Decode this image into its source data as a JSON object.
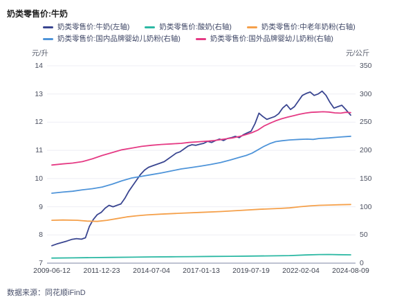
{
  "title": "奶类零售价:牛奶",
  "footer": {
    "source": "数据来源：同花顺iFinD"
  },
  "axes": {
    "left_unit": "元/升",
    "right_unit": "元/公斤"
  },
  "legend": [
    {
      "label": "奶类零售价:牛奶(左轴)",
      "color": "#394590"
    },
    {
      "label": "奶类零售价:酸奶(右轴)",
      "color": "#2BB8A3"
    },
    {
      "label": "奶类零售价:中老年奶粉(右轴)",
      "color": "#F5A04A"
    },
    {
      "label": "奶类零售价:国内品牌婴幼儿奶粉(右轴)",
      "color": "#4E94D9"
    },
    {
      "label": "奶类零售价:国外品牌婴幼儿奶粉(右轴)",
      "color": "#E53A84"
    }
  ],
  "chart_data": {
    "type": "line",
    "title": "奶类零售价:牛奶",
    "grid": true,
    "legend_position": "top",
    "x_axis": {
      "range": [
        2009.45,
        2024.6
      ],
      "tick_labels": [
        "2009-06-12",
        "2011-12-23",
        "2014-07-04",
        "2017-01-13",
        "2019-07-19",
        "2022-02-04",
        "2024-08-09"
      ]
    },
    "left_axis": {
      "unit": "元/升",
      "range": [
        7,
        14
      ],
      "ticks": [
        14,
        13,
        12,
        11,
        10,
        9,
        8,
        7
      ]
    },
    "right_axis": {
      "unit": "元/公斤",
      "range": [
        0,
        350
      ],
      "ticks": [
        350,
        300,
        250,
        200,
        150,
        100,
        50,
        0
      ]
    },
    "series": [
      {
        "name": "奶类零售价:牛奶(左轴)",
        "axis": "left",
        "color": "#394590",
        "points": [
          [
            2009.45,
            7.62
          ],
          [
            2009.7,
            7.68
          ],
          [
            2009.95,
            7.73
          ],
          [
            2010.2,
            7.78
          ],
          [
            2010.45,
            7.84
          ],
          [
            2010.7,
            7.87
          ],
          [
            2010.95,
            7.85
          ],
          [
            2011.15,
            7.9
          ],
          [
            2011.35,
            8.3
          ],
          [
            2011.55,
            8.55
          ],
          [
            2011.75,
            8.72
          ],
          [
            2011.95,
            8.8
          ],
          [
            2012.15,
            8.95
          ],
          [
            2012.35,
            9.05
          ],
          [
            2012.55,
            9.0
          ],
          [
            2012.75,
            9.05
          ],
          [
            2012.95,
            9.1
          ],
          [
            2013.15,
            9.3
          ],
          [
            2013.35,
            9.55
          ],
          [
            2013.55,
            9.75
          ],
          [
            2013.75,
            9.95
          ],
          [
            2013.95,
            10.15
          ],
          [
            2014.15,
            10.3
          ],
          [
            2014.35,
            10.4
          ],
          [
            2014.55,
            10.45
          ],
          [
            2014.75,
            10.5
          ],
          [
            2014.95,
            10.55
          ],
          [
            2015.15,
            10.6
          ],
          [
            2015.35,
            10.7
          ],
          [
            2015.55,
            10.8
          ],
          [
            2015.75,
            10.9
          ],
          [
            2015.95,
            10.95
          ],
          [
            2016.15,
            11.05
          ],
          [
            2016.35,
            11.15
          ],
          [
            2016.55,
            11.2
          ],
          [
            2016.75,
            11.18
          ],
          [
            2016.95,
            11.22
          ],
          [
            2017.15,
            11.25
          ],
          [
            2017.35,
            11.32
          ],
          [
            2017.55,
            11.28
          ],
          [
            2017.75,
            11.35
          ],
          [
            2017.95,
            11.4
          ],
          [
            2018.15,
            11.35
          ],
          [
            2018.35,
            11.42
          ],
          [
            2018.55,
            11.45
          ],
          [
            2018.75,
            11.5
          ],
          [
            2018.95,
            11.45
          ],
          [
            2019.15,
            11.55
          ],
          [
            2019.35,
            11.62
          ],
          [
            2019.55,
            11.68
          ],
          [
            2019.75,
            11.95
          ],
          [
            2019.95,
            12.32
          ],
          [
            2020.15,
            12.2
          ],
          [
            2020.35,
            12.1
          ],
          [
            2020.55,
            12.15
          ],
          [
            2020.75,
            12.2
          ],
          [
            2020.95,
            12.3
          ],
          [
            2021.15,
            12.5
          ],
          [
            2021.35,
            12.62
          ],
          [
            2021.55,
            12.45
          ],
          [
            2021.75,
            12.55
          ],
          [
            2021.95,
            12.75
          ],
          [
            2022.15,
            12.95
          ],
          [
            2022.35,
            13.02
          ],
          [
            2022.55,
            13.07
          ],
          [
            2022.75,
            12.95
          ],
          [
            2022.95,
            13.0
          ],
          [
            2023.15,
            13.1
          ],
          [
            2023.35,
            12.95
          ],
          [
            2023.55,
            12.7
          ],
          [
            2023.75,
            12.5
          ],
          [
            2023.95,
            12.55
          ],
          [
            2024.15,
            12.6
          ],
          [
            2024.35,
            12.45
          ],
          [
            2024.6,
            12.25
          ]
        ]
      },
      {
        "name": "奶类零售价:酸奶(右轴)",
        "axis": "right",
        "color": "#2BB8A3",
        "points": [
          [
            2009.45,
            9
          ],
          [
            2010.5,
            9.3
          ],
          [
            2011.5,
            9.8
          ],
          [
            2012.5,
            10.2
          ],
          [
            2013.5,
            10.6
          ],
          [
            2014.5,
            11
          ],
          [
            2015.5,
            11.3
          ],
          [
            2016.5,
            11.6
          ],
          [
            2017.5,
            11.9
          ],
          [
            2018.5,
            12.2
          ],
          [
            2019.5,
            12.5
          ],
          [
            2020.5,
            12.9
          ],
          [
            2021.5,
            13.4
          ],
          [
            2022.3,
            14.5
          ],
          [
            2023,
            15.2
          ],
          [
            2023.5,
            15.4
          ],
          [
            2024,
            15
          ],
          [
            2024.6,
            14.7
          ]
        ]
      },
      {
        "name": "奶类零售价:中老年奶粉(右轴)",
        "axis": "right",
        "color": "#F5A04A",
        "points": [
          [
            2009.45,
            76
          ],
          [
            2010,
            76.5
          ],
          [
            2010.75,
            76
          ],
          [
            2011.25,
            74.5
          ],
          [
            2011.75,
            74
          ],
          [
            2012.25,
            76
          ],
          [
            2012.75,
            79
          ],
          [
            2013.25,
            82
          ],
          [
            2013.75,
            84
          ],
          [
            2014.25,
            85.5
          ],
          [
            2015,
            87
          ],
          [
            2016,
            88.5
          ],
          [
            2017,
            90
          ],
          [
            2018,
            91.5
          ],
          [
            2019,
            93.5
          ],
          [
            2020,
            95.5
          ],
          [
            2021,
            97
          ],
          [
            2021.5,
            98
          ],
          [
            2022,
            100
          ],
          [
            2022.5,
            101.5
          ],
          [
            2023,
            102.5
          ],
          [
            2023.5,
            103
          ],
          [
            2024,
            103.5
          ],
          [
            2024.6,
            104
          ]
        ]
      },
      {
        "name": "奶类零售价:国内品牌婴幼儿奶粉(右轴)",
        "axis": "right",
        "color": "#4E94D9",
        "points": [
          [
            2009.45,
            124
          ],
          [
            2010,
            126
          ],
          [
            2010.5,
            127.5
          ],
          [
            2011,
            130
          ],
          [
            2011.5,
            132
          ],
          [
            2012,
            135
          ],
          [
            2012.5,
            140
          ],
          [
            2013,
            146
          ],
          [
            2013.5,
            151
          ],
          [
            2014,
            154
          ],
          [
            2014.5,
            157
          ],
          [
            2015,
            160
          ],
          [
            2015.5,
            163.5
          ],
          [
            2016,
            167
          ],
          [
            2016.5,
            169.5
          ],
          [
            2017,
            172
          ],
          [
            2017.5,
            175
          ],
          [
            2018,
            178.5
          ],
          [
            2018.5,
            183
          ],
          [
            2019,
            188
          ],
          [
            2019.3,
            191
          ],
          [
            2019.6,
            195
          ],
          [
            2019.9,
            201
          ],
          [
            2020.2,
            207
          ],
          [
            2020.5,
            212
          ],
          [
            2020.8,
            215.5
          ],
          [
            2021.1,
            217
          ],
          [
            2021.5,
            218.5
          ],
          [
            2022,
            219.5
          ],
          [
            2022.4,
            220
          ],
          [
            2022.7,
            219.5
          ],
          [
            2023,
            221
          ],
          [
            2023.5,
            222
          ],
          [
            2024,
            223.5
          ],
          [
            2024.6,
            225
          ]
        ]
      },
      {
        "name": "奶类零售价:国外品牌婴幼儿奶粉(右轴)",
        "axis": "right",
        "color": "#E53A84",
        "points": [
          [
            2009.45,
            174
          ],
          [
            2010,
            176
          ],
          [
            2010.5,
            177.5
          ],
          [
            2011,
            180
          ],
          [
            2011.5,
            185
          ],
          [
            2012,
            191
          ],
          [
            2012.5,
            196
          ],
          [
            2013,
            201
          ],
          [
            2013.5,
            204
          ],
          [
            2014,
            207
          ],
          [
            2014.5,
            209
          ],
          [
            2015,
            210.5
          ],
          [
            2015.5,
            211.5
          ],
          [
            2016,
            212.5
          ],
          [
            2016.4,
            214
          ],
          [
            2017,
            215.5
          ],
          [
            2017.4,
            216.5
          ],
          [
            2017.7,
            217.5
          ],
          [
            2018,
            219
          ],
          [
            2018.3,
            220.5
          ],
          [
            2018.6,
            222
          ],
          [
            2019,
            225
          ],
          [
            2019.3,
            228
          ],
          [
            2019.6,
            231.5
          ],
          [
            2019.9,
            236
          ],
          [
            2020.2,
            243
          ],
          [
            2020.5,
            248
          ],
          [
            2020.8,
            252.5
          ],
          [
            2021.1,
            256
          ],
          [
            2021.4,
            259
          ],
          [
            2021.7,
            261.5
          ],
          [
            2022,
            264
          ],
          [
            2022.3,
            266
          ],
          [
            2022.6,
            267.5
          ],
          [
            2022.9,
            268
          ],
          [
            2023.2,
            268.5
          ],
          [
            2023.5,
            268
          ],
          [
            2023.8,
            266.5
          ],
          [
            2024.1,
            266
          ],
          [
            2024.35,
            267.5
          ],
          [
            2024.6,
            267
          ]
        ]
      }
    ],
    "colors": {
      "grid": "#EDEEF4",
      "axis_line": "#A9AEC2",
      "tick_text": "#4B5060"
    }
  }
}
